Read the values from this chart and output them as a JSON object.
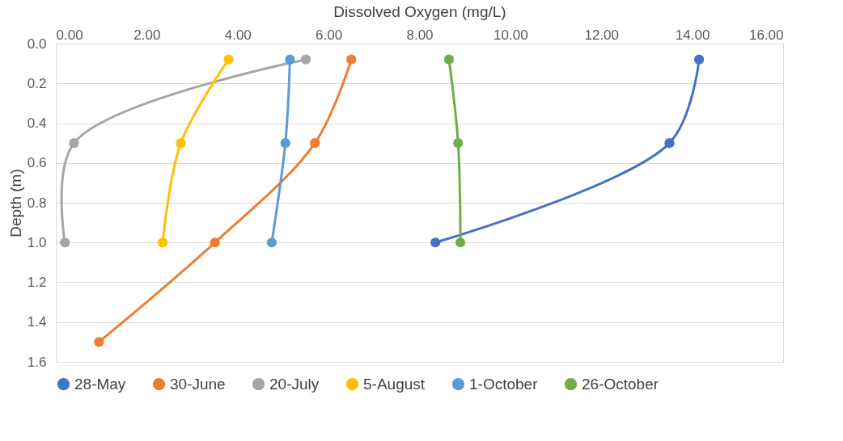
{
  "chart_data": {
    "type": "line",
    "xlabel": "Dissolved Oxygen (mg/L)",
    "ylabel": "Depth (m)",
    "xlim": [
      0,
      16
    ],
    "xticks": [
      {
        "value": 0,
        "label": "0.00"
      },
      {
        "value": 2,
        "label": "2.00"
      },
      {
        "value": 4,
        "label": "4.00"
      },
      {
        "value": 6,
        "label": "6.00"
      },
      {
        "value": 8,
        "label": "8.00"
      },
      {
        "value": 10,
        "label": "10.00"
      },
      {
        "value": 12,
        "label": "12.00"
      },
      {
        "value": 14,
        "label": "14.00"
      },
      {
        "value": 16,
        "label": "16.00"
      }
    ],
    "ylim": [
      1.6,
      0
    ],
    "yticks": [
      {
        "value": 0,
        "label": "0.0"
      },
      {
        "value": 0.2,
        "label": "0.2"
      },
      {
        "value": 0.4,
        "label": "0.4"
      },
      {
        "value": 0.6,
        "label": "0.6"
      },
      {
        "value": 0.8,
        "label": "0.8"
      },
      {
        "value": 1,
        "label": "1.0"
      },
      {
        "value": 1.2,
        "label": "1.2"
      },
      {
        "value": 1.4,
        "label": "1.4"
      },
      {
        "value": 1.6,
        "label": "1.6"
      }
    ],
    "grid": "y",
    "legend": "bottom",
    "marker": "circle",
    "line_style": "solid",
    "series": [
      {
        "name": "28-May",
        "color": "#4472c4",
        "x": [
          14.15,
          13.5,
          8.35
        ],
        "values": [
          0.08,
          0.5,
          1.0
        ]
      },
      {
        "name": "30-June",
        "color": "#ed7d31",
        "x": [
          6.5,
          5.7,
          3.5,
          0.95
        ],
        "values": [
          0.08,
          0.5,
          1.0,
          1.5
        ]
      },
      {
        "name": "20-July",
        "color": "#a5a5a5",
        "x": [
          5.5,
          0.4,
          0.2
        ],
        "values": [
          0.08,
          0.5,
          1.0
        ]
      },
      {
        "name": "5-August",
        "color": "#ffc000",
        "x": [
          3.8,
          2.75,
          2.35
        ],
        "values": [
          0.08,
          0.5,
          1.0
        ]
      },
      {
        "name": "1-October",
        "color": "#5b9bd5",
        "x": [
          5.15,
          5.05,
          4.75
        ],
        "values": [
          0.08,
          0.5,
          1.0
        ]
      },
      {
        "name": "26-October",
        "color": "#70ad47",
        "x": [
          8.65,
          8.85,
          8.9
        ],
        "values": [
          0.08,
          0.5,
          1.0
        ]
      }
    ]
  }
}
